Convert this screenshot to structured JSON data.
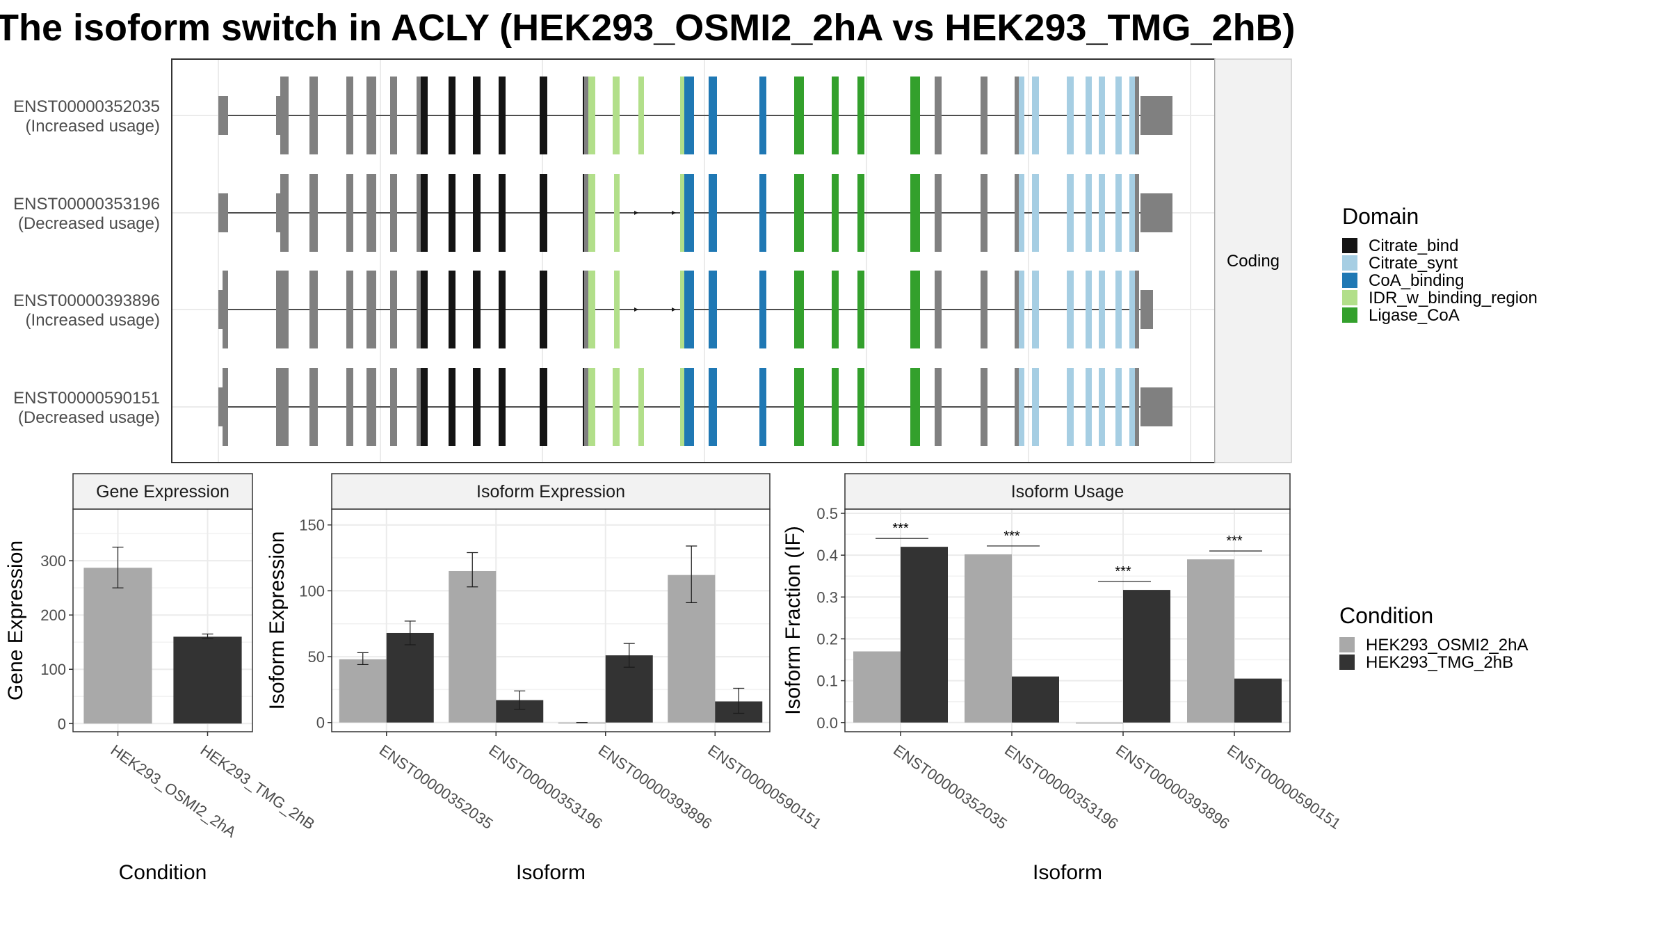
{
  "title": "The isoform switch in ACLY (HEK293_OSMI2_2hA vs HEK293_TMG_2hB)",
  "colors": {
    "cond_a": "#a9a9a9",
    "cond_b": "#333333",
    "exon": "#808080",
    "Citrate_bind": "#141414",
    "Citrate_synt": "#a6cee3",
    "CoA_binding": "#1f78b4",
    "IDR_w_binding_region": "#b2df8a",
    "Ligase_CoA": "#33a02c"
  },
  "structure": {
    "facet_label": "Coding",
    "isoforms": [
      {
        "id": "ENST00000352035",
        "usage": "(Increased usage)",
        "variant": "full",
        "utr": "large"
      },
      {
        "id": "ENST00000353196",
        "usage": "(Decreased usage)",
        "variant": "skip",
        "utr": "large"
      },
      {
        "id": "ENST00000393896",
        "usage": "(Increased usage)",
        "variant": "skip",
        "utr": "small"
      },
      {
        "id": "ENST00000590151",
        "usage": "(Decreased usage)",
        "variant": "full",
        "utr": "large"
      }
    ]
  },
  "legend_domain": {
    "title": "Domain",
    "items": [
      "Citrate_bind",
      "Citrate_synt",
      "CoA_binding",
      "IDR_w_binding_region",
      "Ligase_CoA"
    ]
  },
  "legend_condition": {
    "title": "Condition",
    "items": [
      "HEK293_OSMI2_2hA",
      "HEK293_TMG_2hB"
    ]
  },
  "chart_data": [
    {
      "type": "bar",
      "strip": "Gene Expression",
      "xlabel": "Condition",
      "ylabel": "Gene Expression",
      "categories": [
        "HEK293_OSMI2_2hA",
        "HEK293_TMG_2hB"
      ],
      "values": [
        287,
        160
      ],
      "errors": [
        [
          250,
          325
        ],
        [
          157,
          165
        ]
      ],
      "ylim": [
        -15,
        395
      ],
      "yticks": [
        0,
        100,
        200,
        300
      ]
    },
    {
      "type": "bar",
      "strip": "Isoform Expression",
      "xlabel": "Isoform",
      "ylabel": "Isoform Expression",
      "categories": [
        "ENST00000352035",
        "ENST00000353196",
        "ENST00000393896",
        "ENST00000590151"
      ],
      "series": [
        {
          "name": "HEK293_OSMI2_2hA",
          "values": [
            48,
            115,
            0,
            112
          ],
          "errors": [
            [
              44,
              53
            ],
            [
              103,
              129
            ],
            [
              0,
              0
            ],
            [
              91,
              134
            ]
          ]
        },
        {
          "name": "HEK293_TMG_2hB",
          "values": [
            68,
            17,
            51,
            16
          ],
          "errors": [
            [
              59,
              77
            ],
            [
              10,
              24
            ],
            [
              42,
              60
            ],
            [
              7,
              26
            ]
          ]
        }
      ],
      "ylim": [
        -7,
        162
      ],
      "yticks": [
        0,
        50,
        100,
        150
      ]
    },
    {
      "type": "bar",
      "strip": "Isoform Usage",
      "xlabel": "Isoform",
      "ylabel": "Isoform Fraction (IF)",
      "categories": [
        "ENST00000352035",
        "ENST00000353196",
        "ENST00000393896",
        "ENST00000590151"
      ],
      "series": [
        {
          "name": "HEK293_OSMI2_2hA",
          "values": [
            0.17,
            0.402,
            0.0,
            0.39
          ]
        },
        {
          "name": "HEK293_TMG_2hB",
          "values": [
            0.42,
            0.11,
            0.317,
            0.105
          ]
        }
      ],
      "significance": [
        "***",
        "***",
        "***",
        "***"
      ],
      "ylim": [
        -0.022,
        0.51
      ],
      "yticks": [
        0.0,
        0.1,
        0.2,
        0.3,
        0.4,
        0.5
      ]
    }
  ]
}
